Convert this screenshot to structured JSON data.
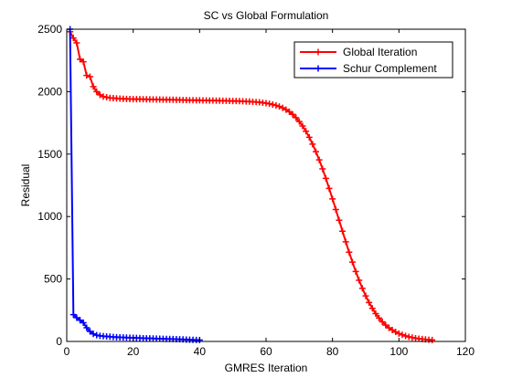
{
  "chart_data": {
    "type": "line",
    "title": "SC vs Global Formulation",
    "xlabel": "GMRES Iteration",
    "ylabel": "Residual",
    "xlim": [
      0,
      120
    ],
    "ylim": [
      0,
      2500
    ],
    "xticks": [
      0,
      20,
      40,
      60,
      80,
      100,
      120
    ],
    "yticks": [
      0,
      500,
      1000,
      1500,
      2000,
      2500
    ],
    "xtick_labels": [
      "0",
      "20",
      "40",
      "60",
      "80",
      "100",
      "120"
    ],
    "ytick_labels": [
      "0",
      "500",
      "1000",
      "1500",
      "2000",
      "2500"
    ],
    "grid": false,
    "legend_position": "top-right",
    "marker": "+",
    "series": [
      {
        "name": "Global Iteration",
        "color": "#ff0000",
        "x": [
          1,
          2,
          3,
          4,
          5,
          6,
          7,
          8,
          9,
          10,
          11,
          12,
          13,
          14,
          15,
          16,
          17,
          18,
          19,
          20,
          21,
          22,
          23,
          24,
          25,
          26,
          27,
          28,
          29,
          30,
          31,
          32,
          33,
          34,
          35,
          36,
          37,
          38,
          39,
          40,
          41,
          42,
          43,
          44,
          45,
          46,
          47,
          48,
          49,
          50,
          51,
          52,
          53,
          54,
          55,
          56,
          57,
          58,
          59,
          60,
          61,
          62,
          63,
          64,
          65,
          66,
          67,
          68,
          69,
          70,
          71,
          72,
          73,
          74,
          75,
          76,
          77,
          78,
          79,
          80,
          81,
          82,
          83,
          84,
          85,
          86,
          87,
          88,
          89,
          90,
          91,
          92,
          93,
          94,
          95,
          96,
          97,
          98,
          99,
          100,
          101,
          102,
          103,
          104,
          105,
          106,
          107,
          108,
          109,
          110
        ],
        "values": [
          2480,
          2430,
          2390,
          2260,
          2240,
          2130,
          2120,
          2040,
          2000,
          1975,
          1960,
          1955,
          1950,
          1948,
          1946,
          1944,
          1943,
          1942,
          1941,
          1940,
          1940,
          1940,
          1939,
          1939,
          1938,
          1938,
          1937,
          1937,
          1936,
          1936,
          1935,
          1935,
          1934,
          1934,
          1933,
          1933,
          1932,
          1932,
          1931,
          1931,
          1930,
          1930,
          1929,
          1929,
          1928,
          1928,
          1927,
          1927,
          1926,
          1925,
          1925,
          1924,
          1923,
          1922,
          1921,
          1919,
          1917,
          1915,
          1912,
          1908,
          1903,
          1897,
          1890,
          1881,
          1870,
          1856,
          1839,
          1818,
          1792,
          1761,
          1725,
          1683,
          1635,
          1580,
          1520,
          1454,
          1382,
          1306,
          1225,
          1141,
          1056,
          970,
          883,
          798,
          715,
          635,
          560,
          490,
          425,
          365,
          312,
          265,
          223,
          187,
          157,
          131,
          109,
          91,
          76,
          63,
          53,
          44,
          37,
          31,
          26,
          22,
          19,
          16,
          14,
          12
        ]
      },
      {
        "name": "Schur Complement",
        "color": "#0000ff",
        "x": [
          1,
          2,
          3,
          4,
          5,
          6,
          7,
          8,
          9,
          10,
          11,
          12,
          13,
          14,
          15,
          16,
          17,
          18,
          19,
          20,
          21,
          22,
          23,
          24,
          25,
          26,
          27,
          28,
          29,
          30,
          31,
          32,
          33,
          34,
          35,
          36,
          37,
          38,
          39,
          40
        ],
        "values": [
          2500,
          215,
          190,
          170,
          150,
          110,
          80,
          60,
          50,
          45,
          42,
          40,
          38,
          36,
          34,
          33,
          32,
          31,
          30,
          29,
          28,
          27,
          26,
          25,
          25,
          24,
          23,
          22,
          21,
          20,
          20,
          19,
          18,
          17,
          16,
          15,
          14,
          13,
          12,
          11
        ]
      }
    ]
  }
}
